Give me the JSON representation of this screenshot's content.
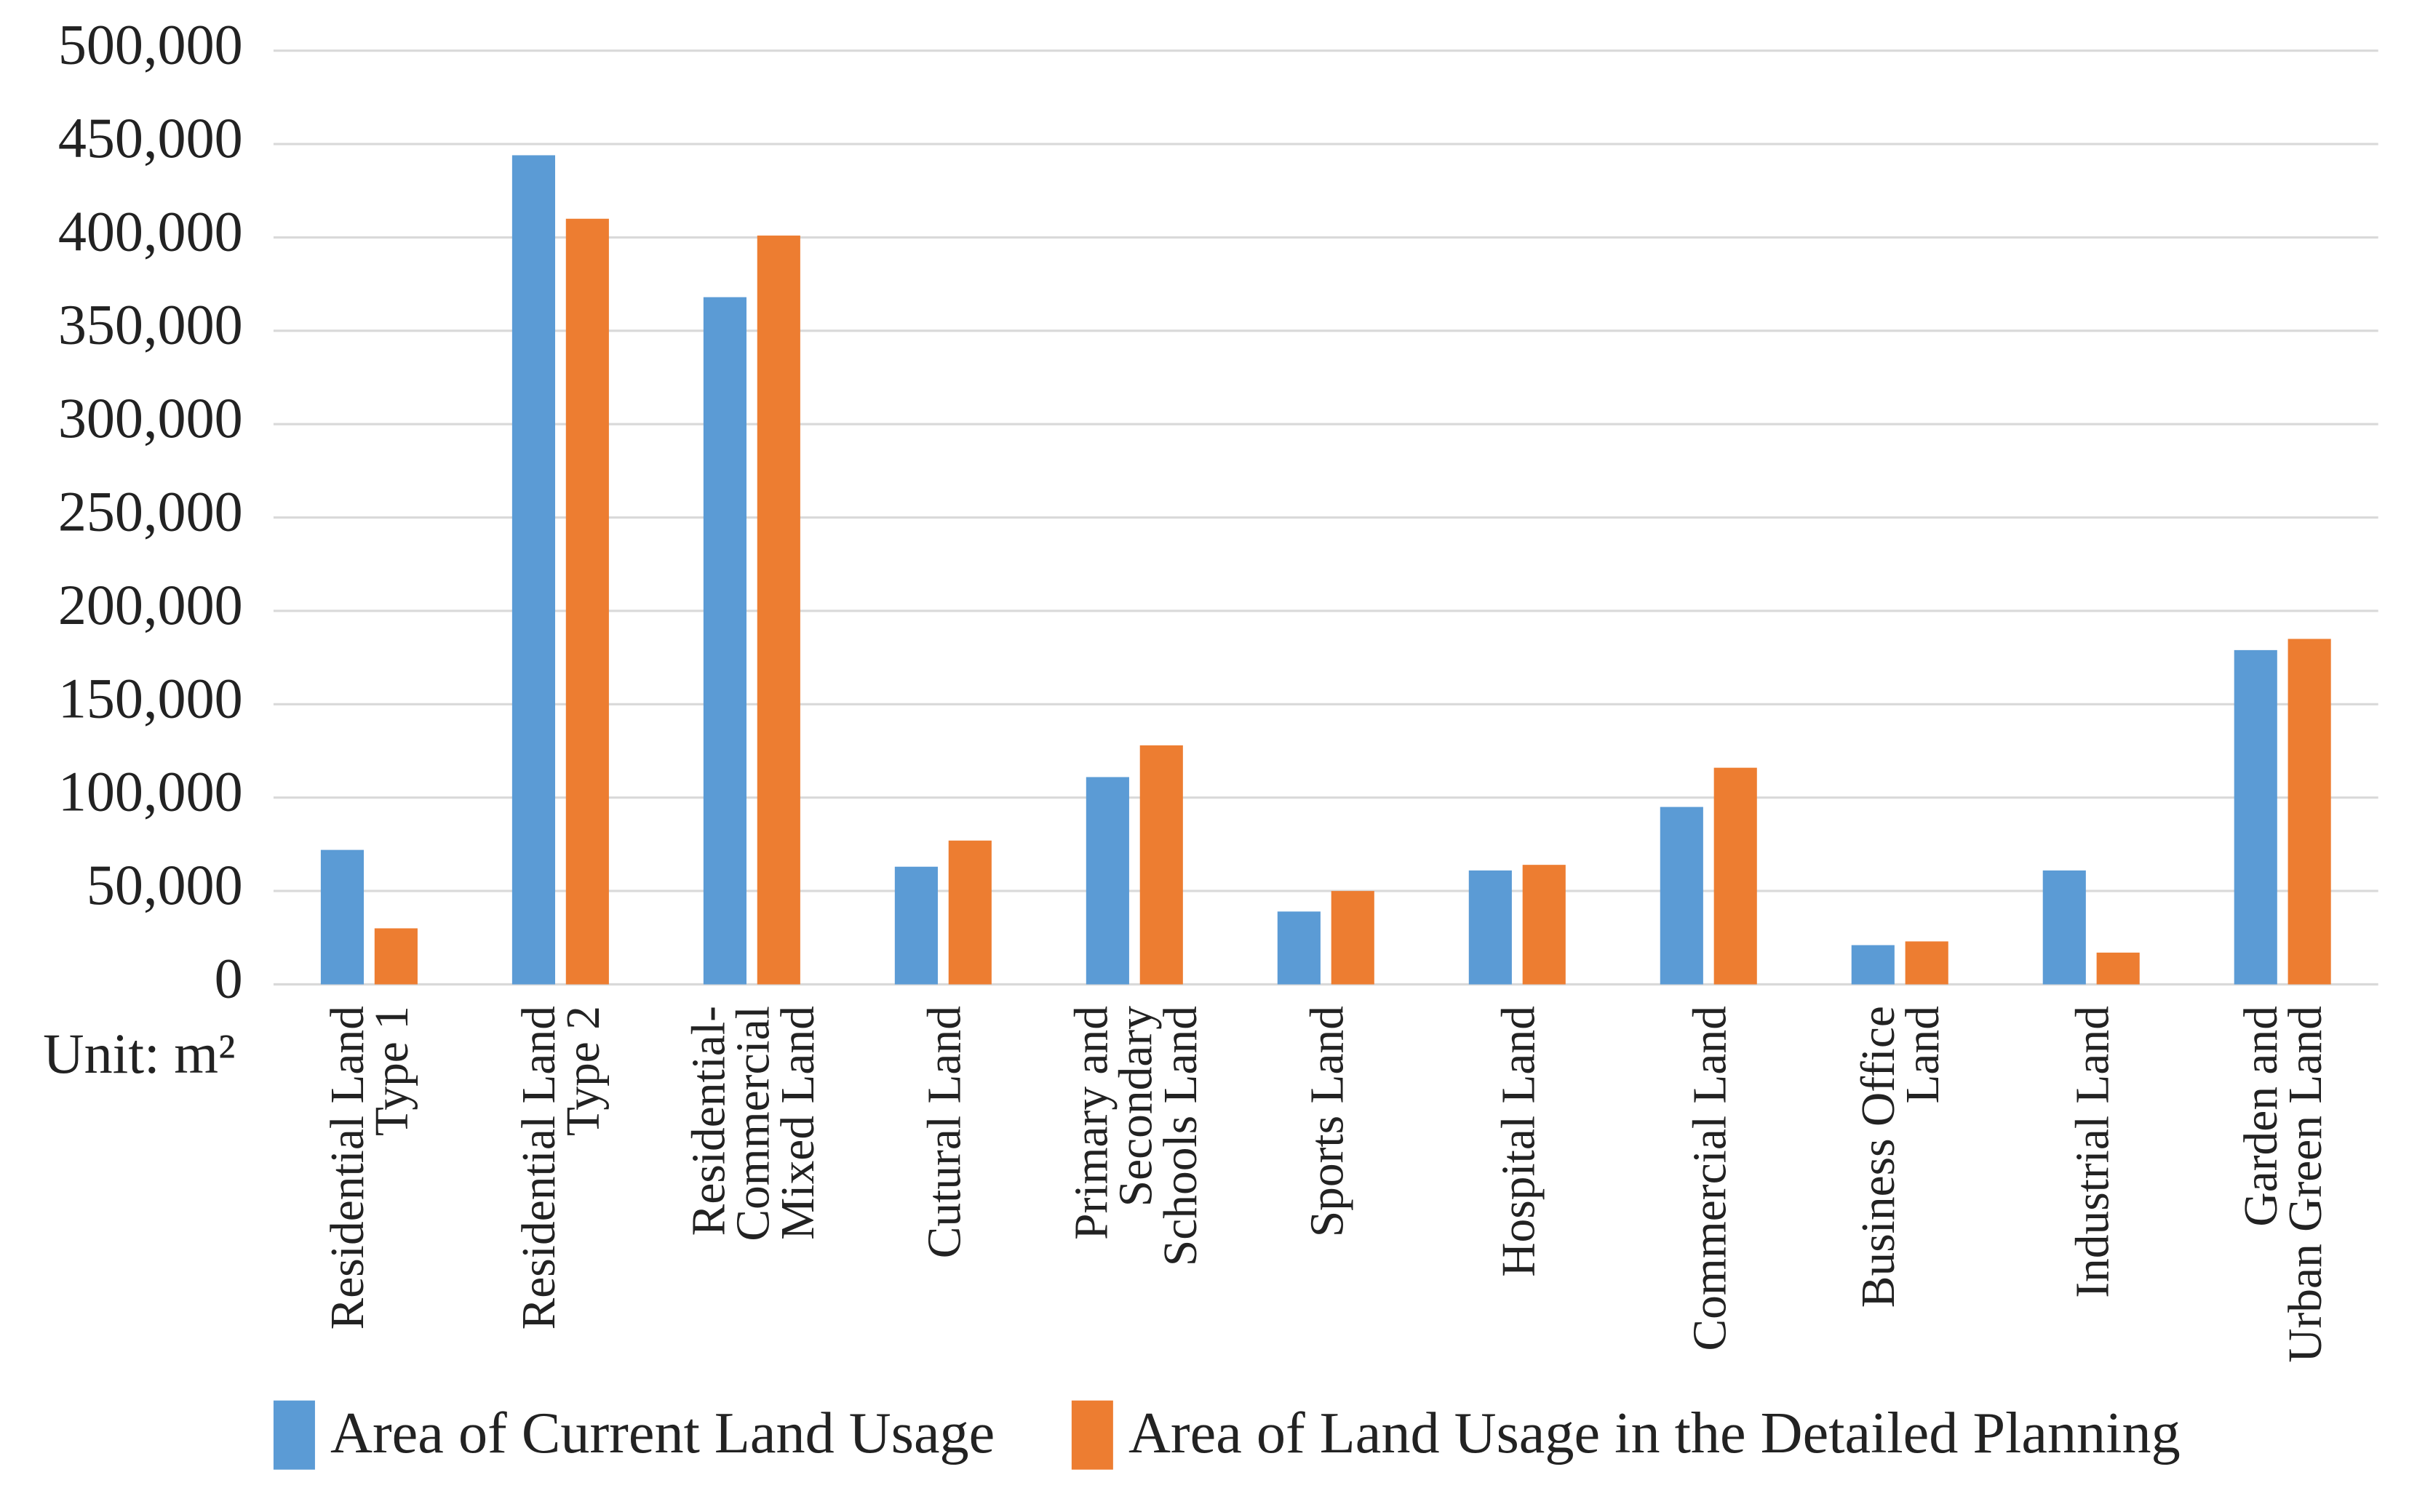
{
  "chart_data": {
    "type": "bar",
    "ylabel": "Unit: m²",
    "categories": [
      "Residential Land\nType 1",
      "Residential Land\nType 2",
      "Residential-\nCommercial\nMixed Land",
      "Cutural Land",
      "Primary and\nSecondary\nSchools Land",
      "Sports Land",
      "Hospital Land",
      "Commercial Land",
      "Business Office\nLand",
      "Industrial Land",
      "Garden and\nUrban Green Land"
    ],
    "series": [
      {
        "name": "Area of Current Land Usage",
        "color": "#5b9bd5",
        "values": [
          72000,
          444000,
          368000,
          63000,
          111000,
          39000,
          61000,
          95000,
          21000,
          61000,
          179000
        ]
      },
      {
        "name": "Area of Land Usage in the Detailed Planning",
        "color": "#ed7d31",
        "values": [
          30000,
          410000,
          401000,
          77000,
          128000,
          50000,
          64000,
          116000,
          23000,
          17000,
          185000
        ]
      }
    ],
    "ylim": [
      0,
      500000
    ],
    "yticks": [
      {
        "value": 0,
        "label": "0"
      },
      {
        "value": 50000,
        "label": "50,000"
      },
      {
        "value": 100000,
        "label": "100,000"
      },
      {
        "value": 150000,
        "label": "150,000"
      },
      {
        "value": 200000,
        "label": "200,000"
      },
      {
        "value": 250000,
        "label": "250,000"
      },
      {
        "value": 300000,
        "label": "300,000"
      },
      {
        "value": 350000,
        "label": "350,000"
      },
      {
        "value": 400000,
        "label": "400,000"
      },
      {
        "value": 450000,
        "label": "450,000"
      },
      {
        "value": 500000,
        "label": "500,000"
      }
    ],
    "grid": true
  }
}
